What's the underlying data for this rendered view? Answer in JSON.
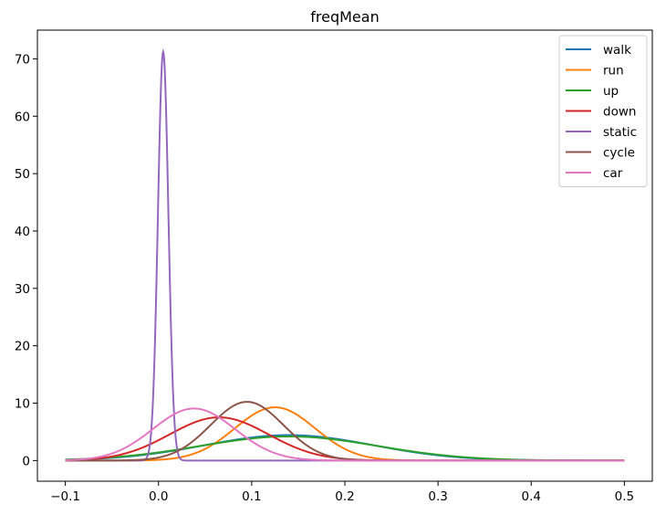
{
  "chart_data": {
    "type": "line",
    "title": "freqMean",
    "xlabel": "",
    "ylabel": "",
    "xlim": [
      -0.13,
      0.53
    ],
    "ylim": [
      -3.6,
      75
    ],
    "grid": false,
    "legend_position": "top-right",
    "xticks": [
      -0.1,
      0.0,
      0.1,
      0.2,
      0.3,
      0.4,
      0.5
    ],
    "xtick_labels": [
      "−0.1",
      "0.0",
      "0.1",
      "0.2",
      "0.3",
      "0.4",
      "0.5"
    ],
    "yticks": [
      0,
      10,
      20,
      30,
      40,
      50,
      60,
      70
    ],
    "ytick_labels": [
      "0",
      "10",
      "20",
      "30",
      "40",
      "50",
      "60",
      "70"
    ],
    "x_range": [
      -0.1,
      0.5
    ],
    "series": [
      {
        "name": "walk",
        "color": "#1f77b4",
        "distribution": "normal",
        "mean": 0.14,
        "std": 0.09
      },
      {
        "name": "run",
        "color": "#ff7f0e",
        "distribution": "normal",
        "mean": 0.125,
        "std": 0.043
      },
      {
        "name": "up",
        "color": "#2ca02c",
        "distribution": "normal",
        "mean": 0.14,
        "std": 0.095
      },
      {
        "name": "down",
        "color": "#d62728",
        "distribution": "normal",
        "mean": 0.065,
        "std": 0.053
      },
      {
        "name": "static",
        "color": "#9467bd",
        "distribution": "normal",
        "mean": 0.005,
        "std": 0.0056
      },
      {
        "name": "cycle",
        "color": "#8c564b",
        "distribution": "normal",
        "mean": 0.095,
        "std": 0.039
      },
      {
        "name": "car",
        "color": "#e377c2",
        "distribution": "normal",
        "mean": 0.038,
        "std": 0.044
      }
    ]
  }
}
